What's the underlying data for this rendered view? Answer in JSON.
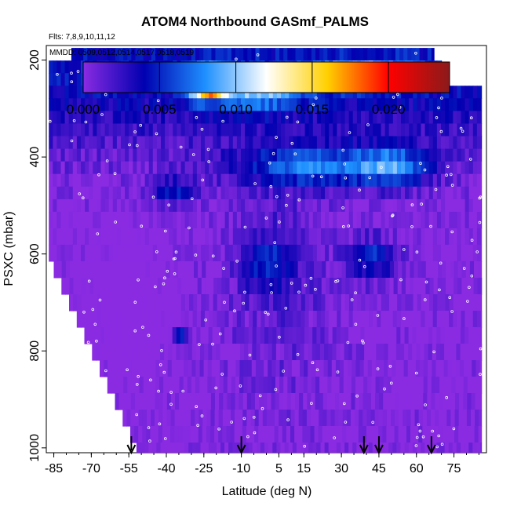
{
  "chart_data": {
    "type": "heatmap",
    "title": "ATOM4 Northbound GASmf_PALMS",
    "flights_note": "Flts: 7,8,9,10,11,12",
    "dates_note": "MMDD: 0509,0512,0514,0517,0518,0519",
    "xlabel": "Latitude (deg N)",
    "ylabel": "PSXC (mbar)",
    "xlim": [
      -88,
      88
    ],
    "ylim": [
      1010,
      170
    ],
    "x_ticks": [
      -85,
      -70,
      -55,
      -40,
      -25,
      -10,
      5,
      15,
      30,
      45,
      60,
      75
    ],
    "x_tick_labels": [
      "-85",
      "-70",
      "-55",
      "-40",
      "-25",
      "-10",
      "5",
      "15",
      "30",
      "45",
      "60",
      "75"
    ],
    "y_ticks": [
      200,
      400,
      600,
      800,
      1000
    ],
    "y_tick_labels": [
      "200",
      "400",
      "600",
      "800",
      "1000"
    ],
    "colorbar": {
      "min": 0.0,
      "max": 0.024,
      "ticks": [
        0.0,
        0.005,
        0.01,
        0.015,
        0.02
      ],
      "tick_labels": [
        "0.000",
        "0.005",
        "0.010",
        "0.015",
        "0.020"
      ]
    },
    "arrow_latitudes": [
      -54,
      -10,
      39,
      45,
      66
    ],
    "colorscale": [
      "#8a2be2",
      "#0000b0",
      "#1e90ff",
      "#ffffff",
      "#ffd000",
      "#ff0000",
      "#8b1a1a"
    ]
  }
}
